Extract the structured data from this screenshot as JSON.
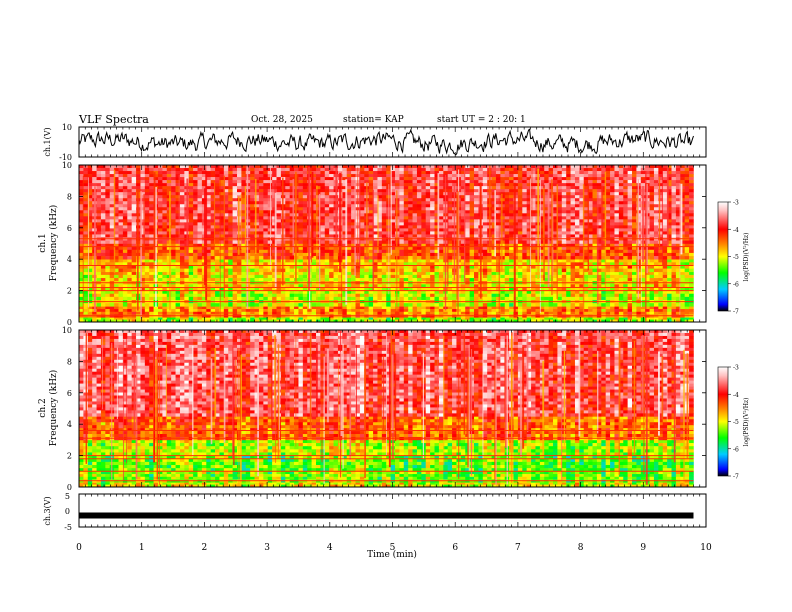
{
  "header": {
    "title": "VLF Spectra",
    "date": "Oct. 28, 2025",
    "station": "station= KAP",
    "start_ut": "start UT = 2 : 20: 1"
  },
  "colorbar": {
    "label": "log(PSD)(V²/Hz)",
    "ticks": [
      "-3",
      "-4",
      "-5",
      "-6",
      "-7"
    ],
    "colors": [
      "#000000",
      "#0000ff",
      "#00ccff",
      "#00ff00",
      "#ffff00",
      "#ff8000",
      "#ff0000",
      "#ffc0c0",
      "#ffffff"
    ]
  },
  "chart_data": [
    {
      "type": "line",
      "name": "ch1-waveform",
      "ylabel": "ch.1(V)",
      "ylim": [
        -10,
        10
      ],
      "y_ticks": [
        "10",
        "-10"
      ],
      "xlim": [
        0,
        10
      ],
      "description_values": "noisy voltage trace between about -8 and +8 V over 0 to 9.8 min"
    },
    {
      "type": "heatmap",
      "name": "ch1-spectrogram",
      "ylabel_channel": "ch.1",
      "ylabel": "Frequency (kHz)",
      "ylim": [
        0,
        10
      ],
      "y_ticks": [
        "10",
        "8",
        "6",
        "4",
        "2",
        "0"
      ],
      "xlim": [
        0,
        10
      ],
      "data_end_min": 9.8,
      "color_range_log_psd": [
        -7,
        -3
      ],
      "bands": [
        {
          "f_low": 0.0,
          "f_high": 0.3,
          "level": 0.45
        },
        {
          "f_low": 0.3,
          "f_high": 1.0,
          "level": 0.62
        },
        {
          "f_low": 1.0,
          "f_high": 2.0,
          "level": 0.48
        },
        {
          "f_low": 2.0,
          "f_high": 3.2,
          "level": 0.52
        },
        {
          "f_low": 3.2,
          "f_high": 4.0,
          "level": 0.55
        },
        {
          "f_low": 4.0,
          "f_high": 5.0,
          "level": 0.68
        },
        {
          "f_low": 5.0,
          "f_high": 10.0,
          "level": 0.8
        }
      ],
      "lines_khz": [
        0.4,
        1.3,
        2.0,
        2.2,
        2.5,
        3.6,
        4.8,
        5.3
      ]
    },
    {
      "type": "heatmap",
      "name": "ch2-spectrogram",
      "ylabel_channel": "ch.2",
      "ylabel": "Frequency (kHz)",
      "ylim": [
        0,
        10
      ],
      "y_ticks": [
        "10",
        "8",
        "6",
        "4",
        "2",
        "0"
      ],
      "xlim": [
        0,
        10
      ],
      "data_end_min": 9.8,
      "color_range_log_psd": [
        -7,
        -3
      ],
      "bands": [
        {
          "f_low": 0.0,
          "f_high": 0.3,
          "level": 0.5
        },
        {
          "f_low": 0.3,
          "f_high": 1.0,
          "level": 0.42
        },
        {
          "f_low": 1.0,
          "f_high": 2.0,
          "level": 0.4
        },
        {
          "f_low": 2.0,
          "f_high": 3.0,
          "level": 0.46
        },
        {
          "f_low": 3.0,
          "f_high": 4.5,
          "level": 0.66
        },
        {
          "f_low": 4.5,
          "f_high": 10.0,
          "level": 0.82
        }
      ],
      "lines_khz": [
        0.4,
        1.0,
        1.8,
        2.0,
        3.1,
        3.6
      ]
    },
    {
      "type": "line",
      "name": "ch3-waveform",
      "ylabel": "ch.3(V)",
      "ylim": [
        -5,
        5
      ],
      "y_ticks": [
        "5",
        "0",
        "-5"
      ],
      "xlim": [
        0,
        10
      ],
      "baseline_v": -1.5,
      "description_values": "flat thick trace near -1.5 V"
    }
  ],
  "xaxis": {
    "label": "Time (min)",
    "ticks": [
      "0",
      "1",
      "2",
      "3",
      "4",
      "5",
      "6",
      "7",
      "8",
      "9",
      "10"
    ]
  }
}
